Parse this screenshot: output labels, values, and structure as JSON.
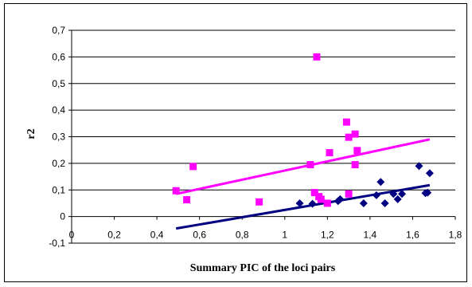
{
  "chart_data": {
    "type": "scatter",
    "title": "",
    "xlabel": "Summary PIC of the loci pairs",
    "ylabel": "r2",
    "xlim": [
      0,
      1.8
    ],
    "ylim": [
      -0.1,
      0.7
    ],
    "x_ticks": [
      0,
      0.2,
      0.4,
      0.6,
      0.8,
      1,
      1.2,
      1.4,
      1.6,
      1.8
    ],
    "x_tick_labels": [
      "0",
      "0,2",
      "0,4",
      "0,6",
      "0,8",
      "1",
      "1,2",
      "1,4",
      "1,6",
      "1,8"
    ],
    "y_ticks": [
      -0.1,
      0,
      0.1,
      0.2,
      0.3,
      0.4,
      0.5,
      0.6,
      0.7
    ],
    "y_tick_labels": [
      "-0,1",
      "0",
      "0,1",
      "0,2",
      "0,3",
      "0,4",
      "0,5",
      "0,6",
      "0,7"
    ],
    "grid": "horizontal",
    "legend": "none",
    "series": [
      {
        "marker": "square",
        "color": "#ff00ff",
        "points": [
          [
            0.49,
            0.097
          ],
          [
            0.54,
            0.063
          ],
          [
            0.57,
            0.188
          ],
          [
            0.88,
            0.055
          ],
          [
            1.12,
            0.195
          ],
          [
            1.14,
            0.09
          ],
          [
            1.15,
            0.6
          ],
          [
            1.16,
            0.075
          ],
          [
            1.17,
            0.065
          ],
          [
            1.2,
            0.05
          ],
          [
            1.21,
            0.24
          ],
          [
            1.29,
            0.355
          ],
          [
            1.3,
            0.298
          ],
          [
            1.3,
            0.085
          ],
          [
            1.33,
            0.31
          ],
          [
            1.33,
            0.195
          ],
          [
            1.34,
            0.248
          ]
        ],
        "trendline": {
          "x": [
            0.49,
            1.68
          ],
          "y": [
            0.085,
            0.29
          ]
        }
      },
      {
        "marker": "diamond",
        "color": "#000080",
        "points": [
          [
            1.07,
            0.05
          ],
          [
            1.13,
            0.048
          ],
          [
            1.25,
            0.058
          ],
          [
            1.26,
            0.065
          ],
          [
            1.37,
            0.05
          ],
          [
            1.43,
            0.08
          ],
          [
            1.45,
            0.13
          ],
          [
            1.47,
            0.05
          ],
          [
            1.51,
            0.085
          ],
          [
            1.53,
            0.065
          ],
          [
            1.55,
            0.085
          ],
          [
            1.63,
            0.19
          ],
          [
            1.66,
            0.088
          ],
          [
            1.67,
            0.09
          ],
          [
            1.68,
            0.163
          ]
        ],
        "trendline": {
          "x": [
            0.49,
            1.68
          ],
          "y": [
            -0.045,
            0.118
          ]
        }
      }
    ]
  }
}
